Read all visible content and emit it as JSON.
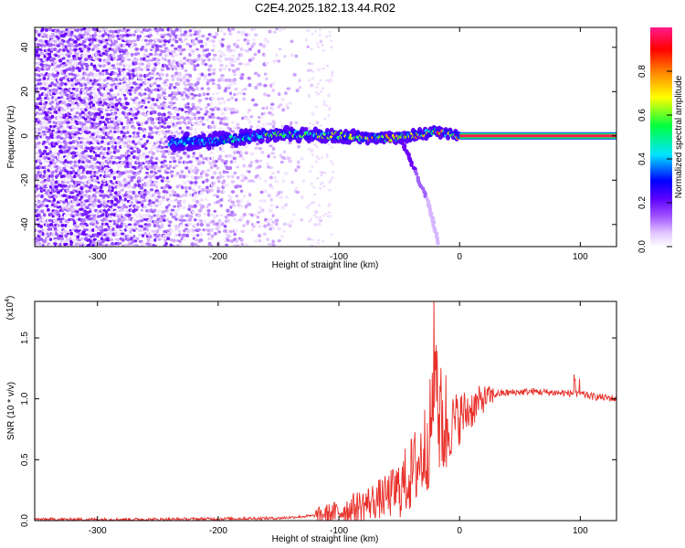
{
  "chart_data": [
    {
      "type": "heatmap",
      "title": "C2E4.2025.182.13.44.R02",
      "xlabel": "Height of straight line (km)",
      "ylabel": "Frequency (Hz)",
      "xlim": [
        -352,
        130
      ],
      "ylim": [
        -50,
        49
      ],
      "xticks": [
        -300,
        -200,
        -100,
        0,
        100
      ],
      "yticks": [
        -40,
        -20,
        0,
        20,
        40
      ],
      "colorbar": {
        "label": "Normalized spectral amplitude",
        "range": [
          0,
          1
        ],
        "ticks": [
          "0.0",
          "0.2",
          "0.4",
          "0.6",
          "0.8"
        ],
        "colors": [
          "#ffffff",
          "#b070ff",
          "#7a00ff",
          "#0000ff",
          "#00e5ff",
          "#00ff40",
          "#ffff00",
          "#ff8000",
          "#ff0000",
          "#ff1a8c"
        ]
      },
      "features": {
        "noise_extent_km": [
          -352,
          -115
        ],
        "main_trace": [
          {
            "x": -240,
            "y": -3
          },
          {
            "x": -200,
            "y": -2
          },
          {
            "x": -150,
            "y": 1
          },
          {
            "x": -100,
            "y": 0
          },
          {
            "x": -60,
            "y": -1
          },
          {
            "x": -40,
            "y": 0
          },
          {
            "x": -20,
            "y": 2
          },
          {
            "x": 0,
            "y": 0
          },
          {
            "x": 130,
            "y": 0
          }
        ],
        "branch_trace": [
          {
            "x": -50,
            "y": 0
          },
          {
            "x": -40,
            "y": -12
          },
          {
            "x": -25,
            "y": -32
          },
          {
            "x": -18,
            "y": -48
          }
        ],
        "pure_tone_start_km": 0,
        "pure_tone_hz": 0
      }
    },
    {
      "type": "line",
      "xlabel": "Height of straight line (km)",
      "ylabel": "SNR (10 * v/v)",
      "exponent_label": "(x10",
      "exponent_power": "4",
      "exponent_close": ")",
      "xlim": [
        -352,
        130
      ],
      "ylim": [
        0,
        1.8
      ],
      "xticks": [
        -300,
        -200,
        -100,
        0,
        100
      ],
      "yticks": [
        0.0,
        0.5,
        1.0,
        1.5
      ],
      "series": [
        {
          "color": "#e8302a",
          "x": [
            -352,
            -300,
            -250,
            -200,
            -150,
            -120,
            -100,
            -80,
            -60,
            -50,
            -40,
            -30,
            -25,
            -20,
            -18,
            -15,
            -10,
            -5,
            0,
            10,
            20,
            30,
            40,
            60,
            80,
            100,
            110,
            130
          ],
          "y": [
            0.01,
            0.01,
            0.01,
            0.015,
            0.02,
            0.04,
            0.07,
            0.13,
            0.2,
            0.26,
            0.38,
            0.55,
            0.7,
            1.05,
            0.75,
            0.82,
            0.75,
            0.8,
            0.85,
            0.92,
            1.0,
            1.04,
            1.05,
            1.06,
            1.05,
            1.04,
            1.02,
            1.0
          ]
        }
      ],
      "spike": {
        "x": -19,
        "y": 1.8
      }
    }
  ]
}
